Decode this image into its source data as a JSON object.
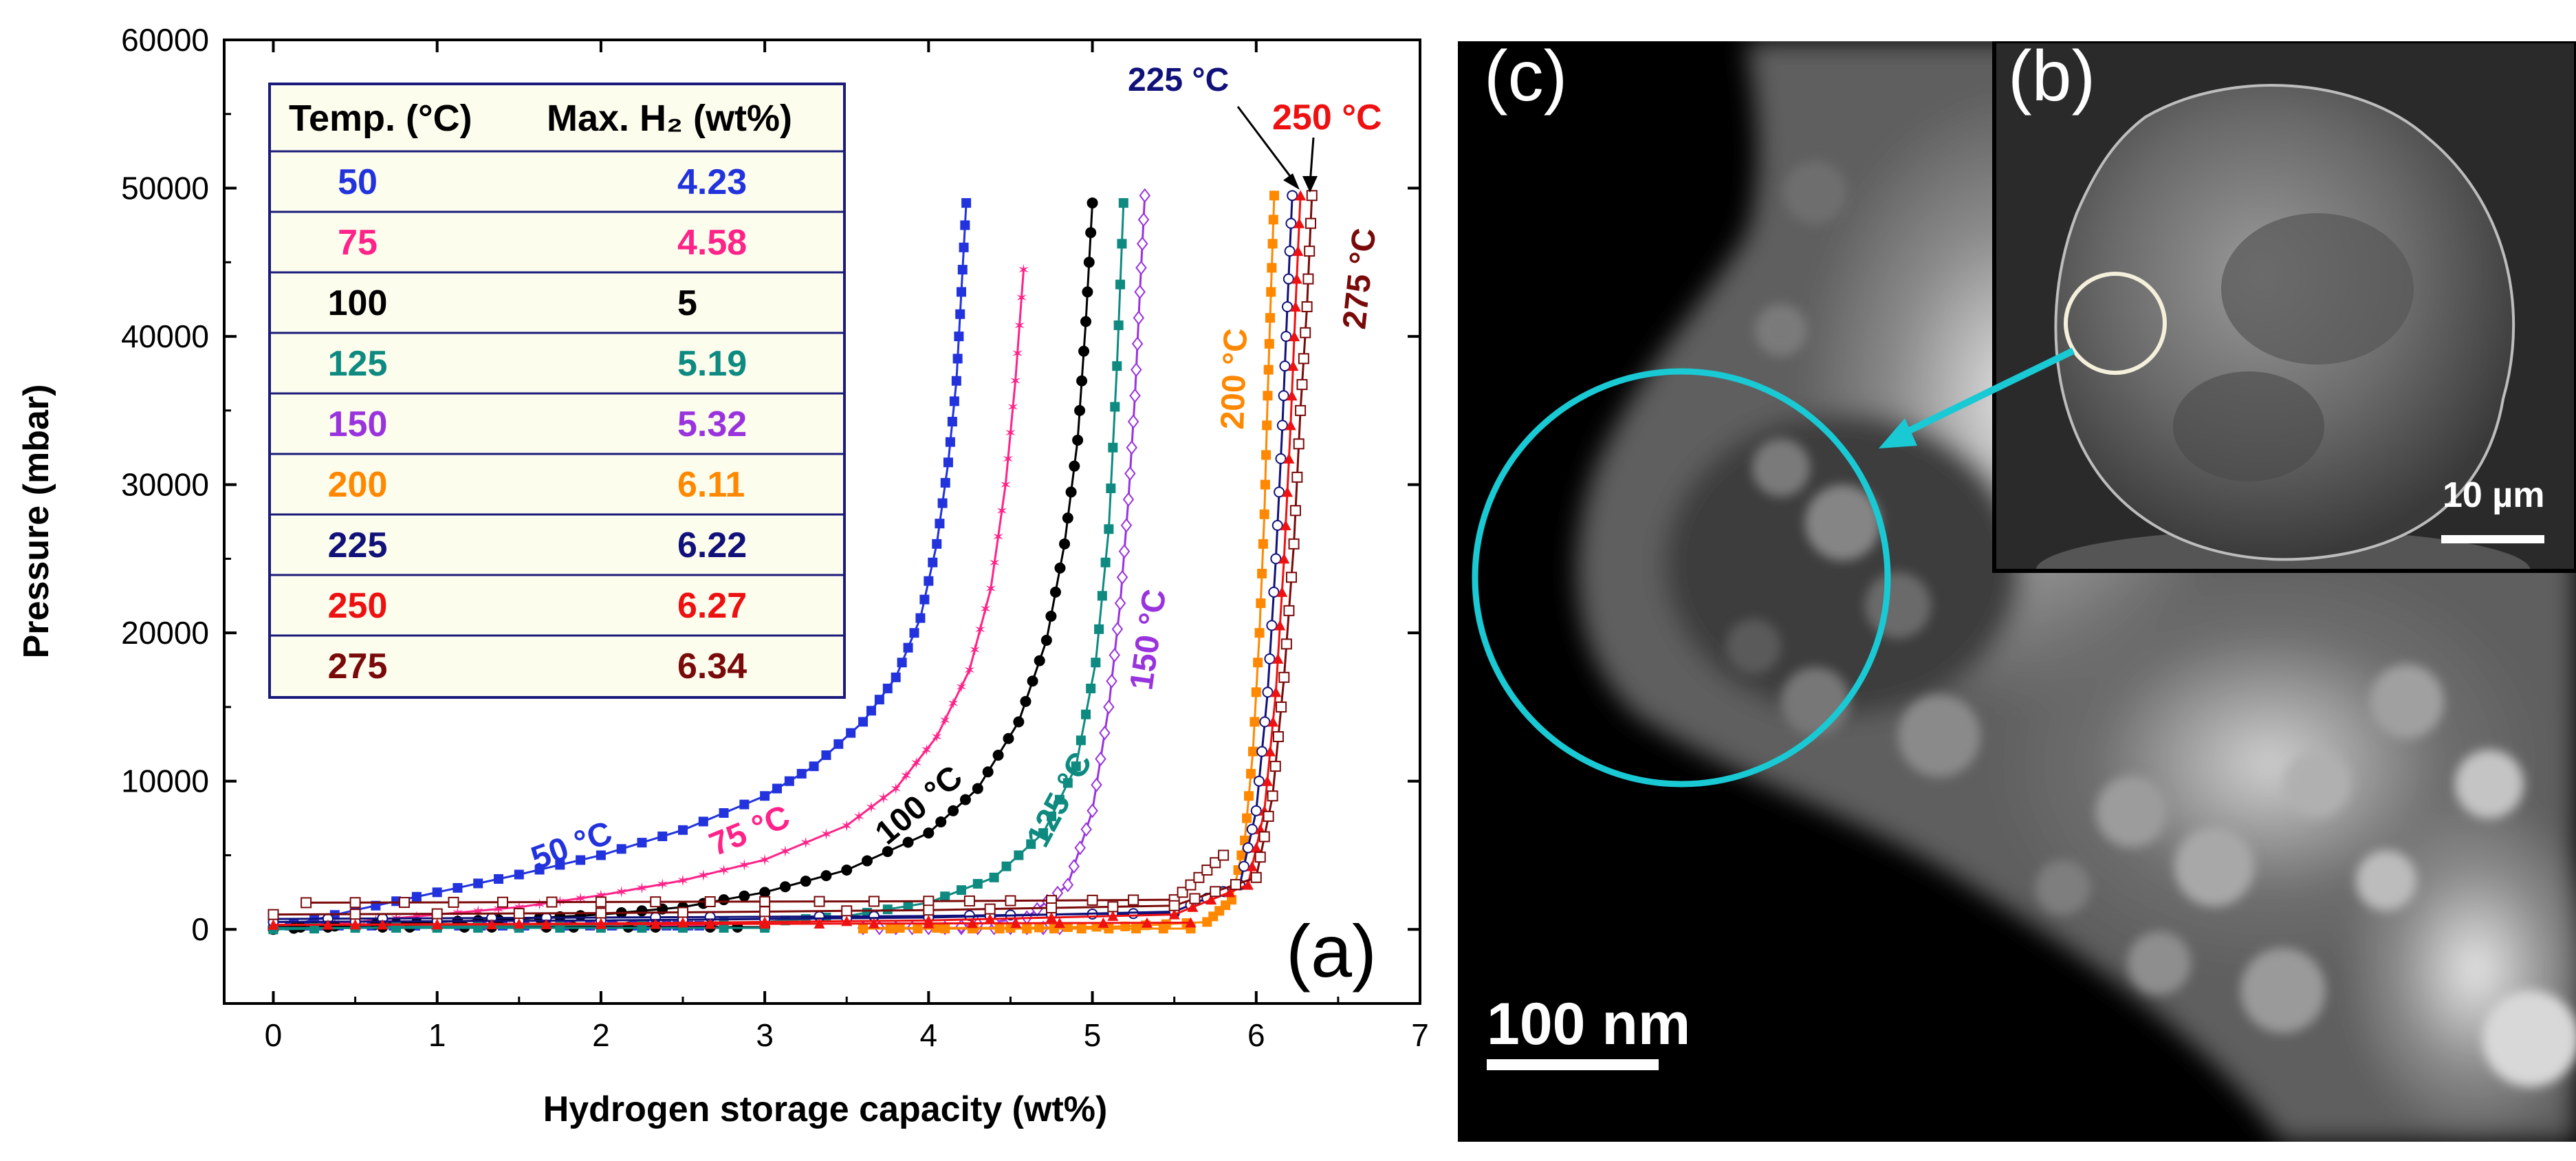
{
  "chart_data": {
    "type": "line",
    "title": "",
    "xlabel": "Hydrogen storage capacity (wt%)",
    "ylabel": "Pressure (mbar)",
    "xlim": [
      -0.3,
      7
    ],
    "ylim": [
      -5000,
      60000
    ],
    "x_ticks": [
      "0",
      "1",
      "2",
      "3",
      "4",
      "5",
      "6",
      "7"
    ],
    "y_ticks": [
      "0",
      "10000",
      "20000",
      "30000",
      "40000",
      "50000",
      "60000"
    ],
    "panel_label": "(a)",
    "table_header": {
      "temp": "Temp. (°C)",
      "h2": "Max. H₂ (wt%)"
    },
    "table_rows": [
      {
        "temp": "50",
        "h2": "4.23",
        "color": "#2233dd"
      },
      {
        "temp": "75",
        "h2": "4.58",
        "color": "#ff2288"
      },
      {
        "temp": "100",
        "h2": "5",
        "color": "#000000"
      },
      {
        "temp": "125",
        "h2": "5.19",
        "color": "#0e8a80"
      },
      {
        "temp": "150",
        "h2": "5.32",
        "color": "#9933dd"
      },
      {
        "temp": "200",
        "h2": "6.11",
        "color": "#ff8800"
      },
      {
        "temp": "225",
        "h2": "6.22",
        "color": "#11117a"
      },
      {
        "temp": "250",
        "h2": "6.27",
        "color": "#ee1111"
      },
      {
        "temp": "275",
        "h2": "6.34",
        "color": "#7a0a0a"
      }
    ],
    "curve_labels": [
      "50 °C",
      "75 °C",
      "100 °C",
      "125 °C",
      "150 °C",
      "200 °C",
      "225 °C",
      "250 °C",
      "275 °C"
    ],
    "series": [
      {
        "name": "50 °C",
        "color": "#2233dd",
        "marker": "square",
        "x": [
          0,
          0.5,
          1,
          1.5,
          2,
          2.5,
          3,
          3.3,
          3.6,
          3.8,
          3.95,
          4.05,
          4.12,
          4.17,
          4.2,
          4.23
        ],
        "y": [
          0,
          1300,
          2500,
          3700,
          5000,
          6700,
          9000,
          11000,
          14000,
          17000,
          21000,
          26000,
          31500,
          37000,
          43000,
          49000
        ],
        "plateau": {
          "x": [
            0,
            0.6,
            1.4,
            2.2,
            2.6
          ],
          "y": [
            250,
            250,
            250,
            250,
            250
          ]
        }
      },
      {
        "name": "75 °C",
        "color": "#ff2288",
        "marker": "star",
        "x": [
          0,
          0.5,
          1,
          1.5,
          2,
          2.5,
          3,
          3.5,
          3.8,
          4.05,
          4.25,
          4.38,
          4.47,
          4.53,
          4.58
        ],
        "y": [
          0,
          500,
          1000,
          1500,
          2300,
          3300,
          4700,
          7000,
          9500,
          13000,
          17500,
          23000,
          30000,
          37000,
          44500
        ],
        "plateau": {
          "x": [
            0,
            0.8,
            1.8,
            2.7
          ],
          "y": [
            300,
            300,
            300,
            300
          ]
        }
      },
      {
        "name": "100 °C",
        "color": "#000000",
        "marker": "circle",
        "x": [
          0,
          0.5,
          1,
          1.5,
          2,
          2.5,
          3,
          3.5,
          4,
          4.3,
          4.55,
          4.72,
          4.83,
          4.91,
          4.96,
          5.0
        ],
        "y": [
          0,
          300,
          500,
          700,
          1000,
          1500,
          2500,
          4000,
          6500,
          9500,
          14000,
          19500,
          26000,
          33000,
          41000,
          49000
        ],
        "plateau": {
          "x": [
            0,
            1,
            2,
            3
          ],
          "y": [
            150,
            150,
            150,
            150
          ]
        }
      },
      {
        "name": "125 °C",
        "color": "#0e8a80",
        "marker": "square",
        "x": [
          0,
          1,
          2,
          3,
          3.5,
          4,
          4.4,
          4.7,
          4.9,
          5.02,
          5.1,
          5.15,
          5.19
        ],
        "y": [
          0,
          200,
          300,
          500,
          900,
          1800,
          3500,
          6500,
          11000,
          18000,
          27000,
          38000,
          49000
        ],
        "plateau": {
          "x": [
            0,
            1.5,
            3.0
          ],
          "y": [
            100,
            100,
            100
          ]
        }
      },
      {
        "name": "150 °C",
        "color": "#9933dd",
        "marker": "diamond",
        "x": [
          4.2,
          4.6,
          4.85,
          5.0,
          5.1,
          5.17,
          5.22,
          5.26,
          5.29,
          5.32
        ],
        "y": [
          200,
          800,
          3000,
          8000,
          15000,
          22000,
          29000,
          36000,
          43000,
          49500
        ],
        "plateau": {
          "x": [
            3.6,
            4.2,
            4.8
          ],
          "y": [
            100,
            100,
            100
          ]
        }
      },
      {
        "name": "200 °C",
        "color": "#ff8800",
        "marker": "square",
        "x": [
          3.6,
          4.5,
          5.2,
          5.7,
          5.85,
          5.93,
          5.98,
          6.02,
          6.05,
          6.07,
          6.09,
          6.11
        ],
        "y": [
          100,
          100,
          200,
          500,
          2000,
          6000,
          12000,
          20000,
          28000,
          36000,
          43000,
          49500
        ],
        "plateau": {
          "x": [
            3.6,
            4.6,
            5.6
          ],
          "y": [
            50,
            50,
            50
          ]
        }
      },
      {
        "name": "225 °C",
        "color": "#11117a",
        "marker": "circle-open",
        "x": [
          0,
          2,
          4,
          5.5,
          5.9,
          6.0,
          6.07,
          6.12,
          6.16,
          6.19,
          6.22
        ],
        "y": [
          500,
          600,
          800,
          1200,
          3000,
          8000,
          16000,
          25000,
          34000,
          42000,
          49500
        ],
        "plateau": {
          "x": [
            0,
            2,
            4,
            5.5
          ],
          "y": [
            700,
            800,
            900,
            1100
          ]
        }
      },
      {
        "name": "250 °C",
        "color": "#ee1111",
        "marker": "triangle",
        "x": [
          0,
          2,
          4,
          5.5,
          5.95,
          6.05,
          6.12,
          6.17,
          6.21,
          6.24,
          6.27
        ],
        "y": [
          300,
          400,
          600,
          1000,
          3000,
          8000,
          16000,
          25000,
          34000,
          42000,
          49500
        ],
        "plateau": {
          "x": [
            0,
            2,
            4,
            5.6
          ],
          "y": [
            300,
            350,
            400,
            450
          ]
        }
      },
      {
        "name": "275 °C",
        "color": "#7a0a0a",
        "marker": "square-open",
        "x": [
          0,
          2,
          4,
          5.5,
          6.0,
          6.1,
          6.17,
          6.23,
          6.27,
          6.31,
          6.34
        ],
        "y": [
          1000,
          1100,
          1300,
          1600,
          3500,
          9000,
          17000,
          26000,
          35000,
          42000,
          49500
        ],
        "plateau": {
          "x": [
            0.2,
            2,
            4,
            5.5,
            5.8
          ],
          "y": [
            1800,
            1850,
            1900,
            2000,
            5000
          ]
        }
      }
    ]
  },
  "micrograph": {
    "panel_c": "(c)",
    "panel_b": "(b)",
    "scale_main": "100 nm",
    "scale_inset": "10 µm",
    "highlight_color": "#19c9d4"
  }
}
